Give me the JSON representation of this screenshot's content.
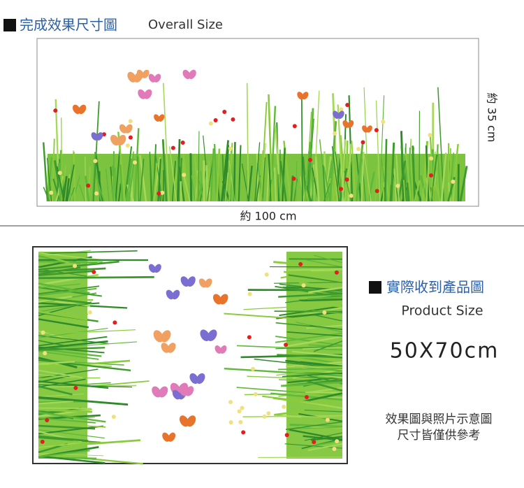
{
  "overall": {
    "title": "完成效果尺寸圖",
    "subtitle": "Overall Size",
    "height_label": "約 35 cm",
    "width_label": "約 100 cm"
  },
  "product": {
    "title": "實際收到產品圖",
    "subtitle": "Product Size",
    "size": "50X70cm",
    "notes": [
      "效果圖與照片示意圖",
      "尺寸皆僅供參考"
    ]
  }
}
